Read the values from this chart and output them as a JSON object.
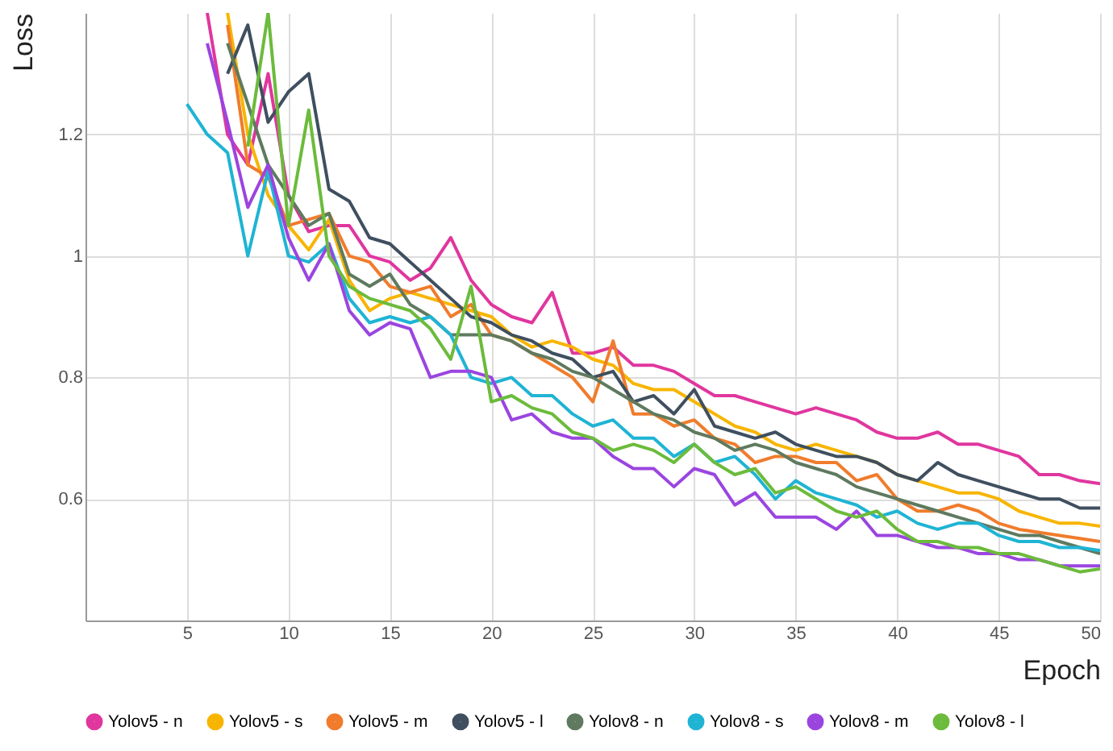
{
  "chart_data": {
    "type": "line",
    "xlabel": "Epoch",
    "ylabel": "Loss",
    "xlim": [
      0,
      50
    ],
    "xticks": [
      5,
      10,
      15,
      20,
      25,
      30,
      35,
      40,
      45,
      50
    ],
    "ylim": [
      0.4,
      1.4
    ],
    "yticks": [
      0.6,
      0.8,
      {
        "value": 1,
        "label": "1"
      },
      1.2
    ],
    "grid": true,
    "legend": "bottom",
    "line_style": "solid",
    "series": [
      {
        "name": "Yolov5 - n",
        "color": "#e0369e",
        "x": [
          6,
          7,
          8,
          9,
          10,
          11,
          12,
          13,
          14,
          15,
          16,
          17,
          18,
          19,
          20,
          21,
          22,
          23,
          24,
          25,
          26,
          27,
          28,
          29,
          30,
          31,
          32,
          33,
          34,
          35,
          36,
          37,
          38,
          39,
          40,
          41,
          42,
          43,
          44,
          45,
          46,
          47,
          48,
          49,
          50
        ],
        "values": [
          1.4,
          1.2,
          1.15,
          1.3,
          1.1,
          1.04,
          1.05,
          1.05,
          1.0,
          0.99,
          0.96,
          0.98,
          1.03,
          0.96,
          0.92,
          0.9,
          0.89,
          0.94,
          0.84,
          0.84,
          0.85,
          0.82,
          0.82,
          0.81,
          0.79,
          0.77,
          0.77,
          0.76,
          0.75,
          0.74,
          0.75,
          0.74,
          0.73,
          0.71,
          0.7,
          0.7,
          0.71,
          0.69,
          0.69,
          0.68,
          0.67,
          0.64,
          0.64,
          0.63,
          0.625
        ]
      },
      {
        "name": "Yolov5 - s",
        "color": "#f7b500",
        "x": [
          7,
          8,
          9,
          10,
          11,
          12,
          13,
          14,
          15,
          16,
          17,
          18,
          19,
          20,
          21,
          22,
          23,
          24,
          25,
          26,
          27,
          28,
          29,
          30,
          31,
          32,
          33,
          34,
          35,
          36,
          37,
          38,
          39,
          40,
          41,
          42,
          43,
          44,
          45,
          46,
          47,
          48,
          49,
          50
        ],
        "values": [
          1.4,
          1.2,
          1.1,
          1.05,
          1.01,
          1.06,
          0.96,
          0.91,
          0.93,
          0.94,
          0.93,
          0.92,
          0.91,
          0.9,
          0.87,
          0.85,
          0.86,
          0.85,
          0.83,
          0.82,
          0.79,
          0.78,
          0.78,
          0.76,
          0.74,
          0.72,
          0.71,
          0.69,
          0.68,
          0.69,
          0.68,
          0.67,
          0.66,
          0.64,
          0.63,
          0.62,
          0.61,
          0.61,
          0.6,
          0.58,
          0.57,
          0.56,
          0.56,
          0.555
        ]
      },
      {
        "name": "Yolov5 - m",
        "color": "#f07c2c",
        "x": [
          7,
          8,
          9,
          10,
          11,
          12,
          13,
          14,
          15,
          16,
          17,
          18,
          19,
          20,
          21,
          22,
          23,
          24,
          25,
          26,
          27,
          28,
          29,
          30,
          31,
          32,
          33,
          34,
          35,
          36,
          37,
          38,
          39,
          40,
          41,
          42,
          43,
          44,
          45,
          46,
          47,
          48,
          49,
          50
        ],
        "values": [
          1.38,
          1.15,
          1.13,
          1.05,
          1.06,
          1.07,
          1.0,
          0.99,
          0.95,
          0.94,
          0.95,
          0.9,
          0.92,
          0.87,
          0.86,
          0.84,
          0.82,
          0.8,
          0.76,
          0.86,
          0.74,
          0.74,
          0.72,
          0.73,
          0.7,
          0.69,
          0.66,
          0.67,
          0.67,
          0.66,
          0.66,
          0.63,
          0.64,
          0.6,
          0.58,
          0.58,
          0.59,
          0.58,
          0.56,
          0.55,
          0.545,
          0.54,
          0.535,
          0.53
        ]
      },
      {
        "name": "Yolov5 - l",
        "color": "#3f4f5f",
        "x": [
          7,
          8,
          9,
          10,
          11,
          12,
          13,
          14,
          15,
          16,
          17,
          18,
          19,
          20,
          21,
          22,
          23,
          24,
          25,
          26,
          27,
          28,
          29,
          30,
          31,
          32,
          33,
          34,
          35,
          36,
          37,
          38,
          39,
          40,
          41,
          42,
          43,
          44,
          45,
          46,
          47,
          48,
          49,
          50
        ],
        "values": [
          1.3,
          1.38,
          1.22,
          1.27,
          1.3,
          1.11,
          1.09,
          1.03,
          1.02,
          0.99,
          0.96,
          0.93,
          0.9,
          0.89,
          0.87,
          0.86,
          0.84,
          0.83,
          0.8,
          0.81,
          0.76,
          0.77,
          0.74,
          0.78,
          0.72,
          0.71,
          0.7,
          0.71,
          0.69,
          0.68,
          0.67,
          0.67,
          0.66,
          0.64,
          0.63,
          0.66,
          0.64,
          0.63,
          0.62,
          0.61,
          0.6,
          0.6,
          0.585,
          0.585
        ]
      },
      {
        "name": "Yolov8 - n",
        "color": "#5f7a5f",
        "x": [
          7,
          8,
          9,
          10,
          11,
          12,
          13,
          14,
          15,
          16,
          17,
          18,
          19,
          20,
          21,
          22,
          23,
          24,
          25,
          26,
          27,
          28,
          29,
          30,
          31,
          32,
          33,
          34,
          35,
          36,
          37,
          38,
          39,
          40,
          41,
          42,
          43,
          44,
          45,
          46,
          47,
          48,
          49,
          50
        ],
        "values": [
          1.35,
          1.25,
          1.15,
          1.1,
          1.05,
          1.07,
          0.97,
          0.95,
          0.97,
          0.92,
          0.9,
          0.87,
          0.87,
          0.87,
          0.86,
          0.84,
          0.83,
          0.81,
          0.8,
          0.78,
          0.76,
          0.74,
          0.73,
          0.71,
          0.7,
          0.68,
          0.69,
          0.68,
          0.66,
          0.65,
          0.64,
          0.62,
          0.61,
          0.6,
          0.59,
          0.58,
          0.57,
          0.56,
          0.55,
          0.54,
          0.54,
          0.53,
          0.52,
          0.51
        ]
      },
      {
        "name": "Yolov8 - s",
        "color": "#1fb4d4",
        "x": [
          5,
          6,
          7,
          8,
          9,
          10,
          11,
          12,
          13,
          14,
          15,
          16,
          17,
          18,
          19,
          20,
          21,
          22,
          23,
          24,
          25,
          26,
          27,
          28,
          29,
          30,
          31,
          32,
          33,
          34,
          35,
          36,
          37,
          38,
          39,
          40,
          41,
          42,
          43,
          44,
          45,
          46,
          47,
          48,
          49,
          50
        ],
        "values": [
          1.25,
          1.2,
          1.17,
          1.0,
          1.14,
          1.0,
          0.99,
          1.02,
          0.93,
          0.89,
          0.9,
          0.89,
          0.9,
          0.87,
          0.8,
          0.79,
          0.8,
          0.77,
          0.77,
          0.74,
          0.72,
          0.73,
          0.7,
          0.7,
          0.67,
          0.69,
          0.66,
          0.67,
          0.64,
          0.6,
          0.63,
          0.61,
          0.6,
          0.59,
          0.57,
          0.58,
          0.56,
          0.55,
          0.56,
          0.56,
          0.54,
          0.53,
          0.53,
          0.52,
          0.52,
          0.515
        ]
      },
      {
        "name": "Yolov8 - m",
        "color": "#9b45e0",
        "x": [
          6,
          7,
          8,
          9,
          10,
          11,
          12,
          13,
          14,
          15,
          16,
          17,
          18,
          19,
          20,
          21,
          22,
          23,
          24,
          25,
          26,
          27,
          28,
          29,
          30,
          31,
          32,
          33,
          34,
          35,
          36,
          37,
          38,
          39,
          40,
          41,
          42,
          43,
          44,
          45,
          46,
          47,
          48,
          49,
          50
        ],
        "values": [
          1.35,
          1.22,
          1.08,
          1.15,
          1.03,
          0.96,
          1.02,
          0.91,
          0.87,
          0.89,
          0.88,
          0.8,
          0.81,
          0.81,
          0.8,
          0.73,
          0.74,
          0.71,
          0.7,
          0.7,
          0.67,
          0.65,
          0.65,
          0.62,
          0.65,
          0.64,
          0.59,
          0.61,
          0.57,
          0.57,
          0.57,
          0.55,
          0.58,
          0.54,
          0.54,
          0.53,
          0.52,
          0.52,
          0.51,
          0.51,
          0.5,
          0.5,
          0.49,
          0.49,
          0.49
        ]
      },
      {
        "name": "Yolov8 - l",
        "color": "#6cbb3c",
        "x": [
          8,
          9,
          10,
          11,
          12,
          13,
          14,
          15,
          16,
          17,
          18,
          19,
          20,
          21,
          22,
          23,
          24,
          25,
          26,
          27,
          28,
          29,
          30,
          31,
          32,
          33,
          34,
          35,
          36,
          37,
          38,
          39,
          40,
          41,
          42,
          43,
          44,
          45,
          46,
          47,
          48,
          49,
          50
        ],
        "values": [
          1.18,
          1.4,
          1.05,
          1.24,
          1.0,
          0.95,
          0.93,
          0.92,
          0.91,
          0.88,
          0.83,
          0.95,
          0.76,
          0.77,
          0.75,
          0.74,
          0.71,
          0.7,
          0.68,
          0.69,
          0.68,
          0.66,
          0.69,
          0.66,
          0.64,
          0.65,
          0.61,
          0.62,
          0.6,
          0.58,
          0.57,
          0.58,
          0.55,
          0.53,
          0.53,
          0.52,
          0.52,
          0.51,
          0.51,
          0.5,
          0.49,
          0.48,
          0.485
        ]
      }
    ]
  }
}
